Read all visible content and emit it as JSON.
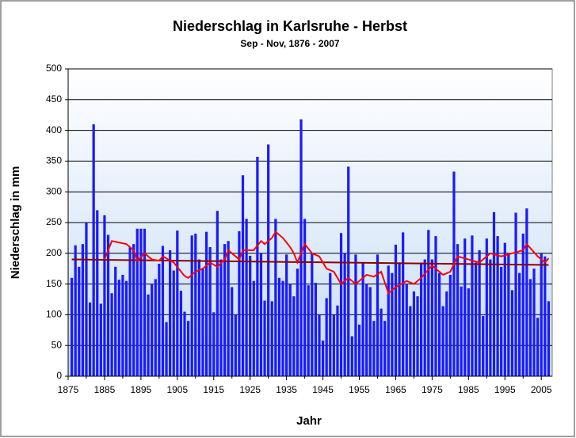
{
  "chart_data": {
    "type": "bar",
    "title": "Niederschlag in Karlsruhe - Herbst",
    "subtitle": "Sep - Nov, 1876 - 2007",
    "x_label": "Jahr",
    "y_label": "Niederschlag in mm",
    "x": [
      1876,
      1877,
      1878,
      1879,
      1880,
      1881,
      1882,
      1883,
      1884,
      1885,
      1886,
      1887,
      1888,
      1889,
      1890,
      1891,
      1892,
      1893,
      1894,
      1895,
      1896,
      1897,
      1898,
      1899,
      1900,
      1901,
      1902,
      1903,
      1904,
      1905,
      1906,
      1907,
      1908,
      1909,
      1910,
      1911,
      1912,
      1913,
      1914,
      1915,
      1916,
      1917,
      1918,
      1919,
      1920,
      1921,
      1922,
      1923,
      1924,
      1925,
      1926,
      1927,
      1928,
      1929,
      1930,
      1931,
      1932,
      1933,
      1934,
      1935,
      1936,
      1937,
      1938,
      1939,
      1940,
      1941,
      1942,
      1943,
      1944,
      1945,
      1946,
      1947,
      1948,
      1949,
      1950,
      1951,
      1952,
      1953,
      1954,
      1955,
      1956,
      1957,
      1958,
      1959,
      1960,
      1961,
      1962,
      1963,
      1964,
      1965,
      1966,
      1967,
      1968,
      1969,
      1970,
      1971,
      1972,
      1973,
      1974,
      1975,
      1976,
      1977,
      1978,
      1979,
      1980,
      1981,
      1982,
      1983,
      1984,
      1985,
      1986,
      1987,
      1988,
      1989,
      1990,
      1991,
      1992,
      1993,
      1994,
      1995,
      1996,
      1997,
      1998,
      1999,
      2000,
      2001,
      2002,
      2003,
      2004,
      2005,
      2006,
      2007
    ],
    "values": [
      160,
      213,
      178,
      215,
      250,
      120,
      410,
      270,
      118,
      262,
      230,
      135,
      178,
      157,
      165,
      155,
      210,
      215,
      240,
      240,
      240,
      133,
      150,
      158,
      183,
      212,
      88,
      205,
      172,
      237,
      139,
      105,
      90,
      229,
      232,
      190,
      175,
      235,
      210,
      104,
      269,
      190,
      215,
      220,
      145,
      100,
      236,
      327,
      256,
      196,
      155,
      357,
      200,
      123,
      377,
      122,
      256,
      160,
      155,
      198,
      150,
      130,
      175,
      418,
      256,
      148,
      200,
      152,
      100,
      58,
      127,
      168,
      100,
      115,
      233,
      200,
      341,
      65,
      198,
      84,
      185,
      150,
      145,
      90,
      198,
      110,
      90,
      180,
      168,
      214,
      185,
      234,
      150,
      114,
      138,
      130,
      185,
      190,
      238,
      190,
      228,
      168,
      114,
      138,
      165,
      333,
      215,
      146,
      224,
      143,
      229,
      185,
      205,
      98,
      224,
      190,
      267,
      228,
      178,
      217,
      200,
      140,
      266,
      168,
      232,
      273,
      158,
      175,
      95,
      200,
      195,
      122
    ],
    "color": "#1a1aff",
    "smooth": {
      "color": "#ff0000",
      "x": [
        1885,
        1887,
        1891,
        1893,
        1894,
        1896,
        1898,
        1900,
        1901,
        1904,
        1907,
        1908,
        1910,
        1912,
        1914,
        1916,
        1918,
        1919,
        1921,
        1922,
        1923,
        1926,
        1928,
        1929,
        1931,
        1932,
        1934,
        1936,
        1937,
        1938,
        1940,
        1942,
        1944,
        1946,
        1948,
        1950,
        1952,
        1954,
        1957,
        1959,
        1961,
        1963,
        1965,
        1968,
        1970,
        1972,
        1975,
        1978,
        1980,
        1982,
        1985,
        1988,
        1991,
        1994,
        1997,
        2000,
        2001,
        2004,
        2006,
        2007
      ],
      "values": [
        190,
        220,
        215,
        205,
        188,
        200,
        190,
        188,
        195,
        185,
        163,
        160,
        170,
        175,
        185,
        178,
        190,
        205,
        195,
        190,
        205,
        205,
        220,
        215,
        225,
        235,
        225,
        210,
        200,
        185,
        215,
        200,
        195,
        175,
        170,
        150,
        160,
        150,
        165,
        162,
        170,
        135,
        145,
        155,
        150,
        160,
        180,
        165,
        170,
        195,
        190,
        185,
        200,
        195,
        200,
        205,
        215,
        195,
        185,
        192
      ]
    },
    "trend": {
      "color": "#8b0000",
      "x": [
        1876,
        2007
      ],
      "values": [
        190,
        181
      ]
    },
    "xlim": [
      1875,
      2008
    ],
    "xticks": [
      1875,
      1885,
      1895,
      1905,
      1915,
      1925,
      1935,
      1945,
      1955,
      1965,
      1975,
      1985,
      1995,
      2005
    ],
    "xticks_minor": [
      1880,
      1890,
      1900,
      1910,
      1920,
      1930,
      1940,
      1950,
      1960,
      1970,
      1980,
      1990,
      2000
    ],
    "ylim": [
      0,
      500
    ],
    "yticks": [
      0,
      50,
      100,
      150,
      200,
      250,
      300,
      350,
      400,
      450,
      500
    ],
    "grid": true
  }
}
